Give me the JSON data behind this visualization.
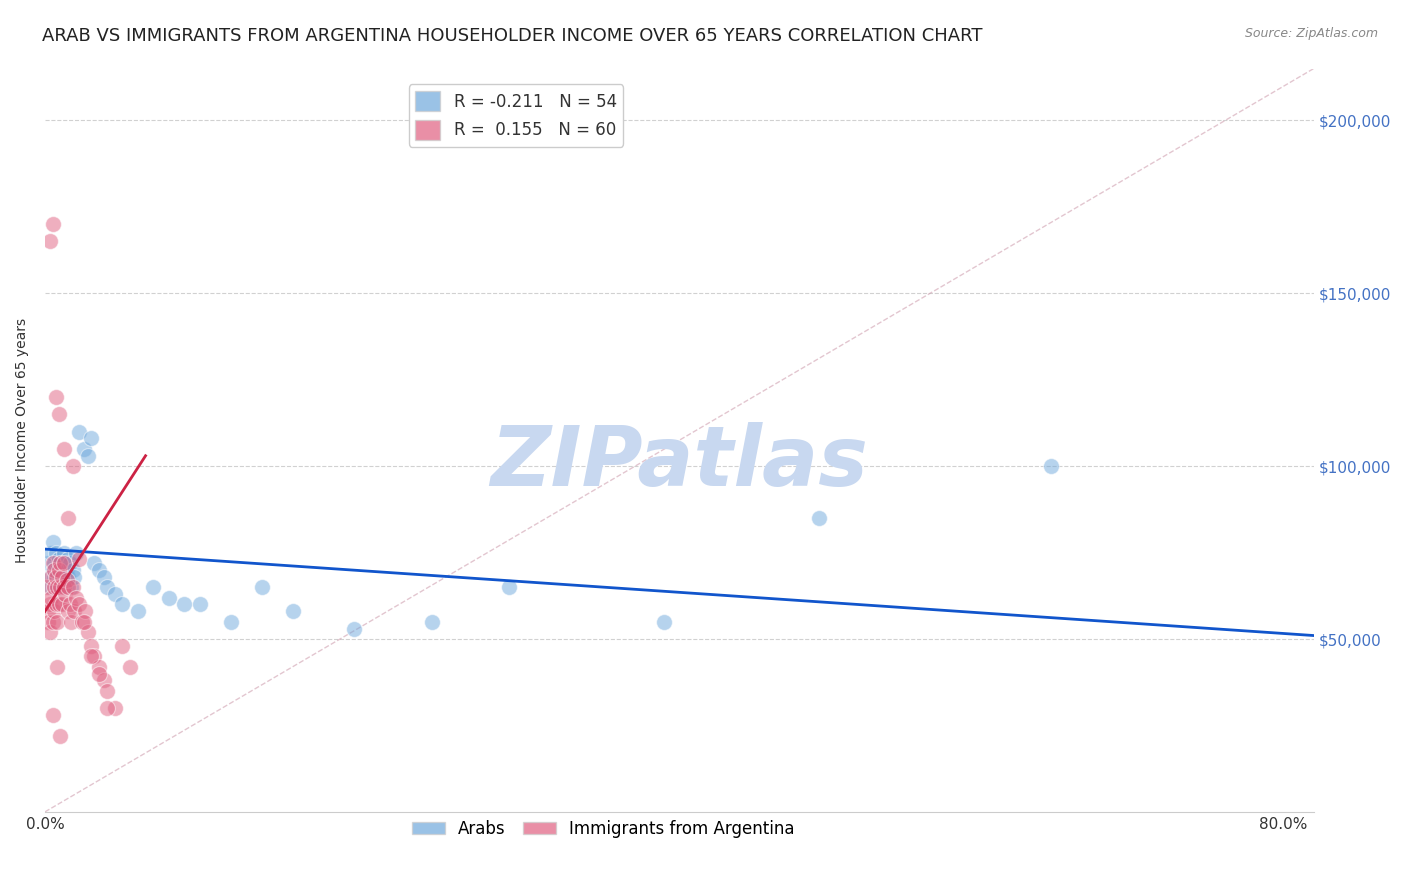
{
  "title": "ARAB VS IMMIGRANTS FROM ARGENTINA HOUSEHOLDER INCOME OVER 65 YEARS CORRELATION CHART",
  "source": "Source: ZipAtlas.com",
  "ylabel": "Householder Income Over 65 years",
  "watermark": "ZIPatlas",
  "legend_arab_R": "-0.211",
  "legend_arab_N": "54",
  "legend_arg_R": "0.155",
  "legend_arg_N": "60",
  "arab_color": "#6fa8dc",
  "arg_color": "#e06080",
  "arab_line_color": "#1155cc",
  "arg_line_color": "#cc2244",
  "ytick_labels": [
    "$50,000",
    "$100,000",
    "$150,000",
    "$200,000"
  ],
  "ytick_values": [
    50000,
    100000,
    150000,
    200000
  ],
  "ymin": 0,
  "ymax": 215000,
  "xmin": 0.0,
  "xmax": 0.82,
  "arab_scatter_x": [
    0.002,
    0.003,
    0.004,
    0.004,
    0.005,
    0.005,
    0.006,
    0.006,
    0.007,
    0.007,
    0.008,
    0.008,
    0.009,
    0.009,
    0.01,
    0.01,
    0.011,
    0.011,
    0.012,
    0.012,
    0.013,
    0.013,
    0.014,
    0.015,
    0.015,
    0.016,
    0.017,
    0.018,
    0.019,
    0.02,
    0.022,
    0.025,
    0.028,
    0.03,
    0.032,
    0.035,
    0.038,
    0.04,
    0.045,
    0.05,
    0.06,
    0.07,
    0.08,
    0.09,
    0.1,
    0.12,
    0.14,
    0.16,
    0.2,
    0.25,
    0.3,
    0.4,
    0.5,
    0.65
  ],
  "arab_scatter_y": [
    72000,
    68000,
    75000,
    65000,
    70000,
    78000,
    68000,
    72000,
    65000,
    75000,
    70000,
    68000,
    73000,
    67000,
    72000,
    65000,
    70000,
    68000,
    75000,
    72000,
    68000,
    65000,
    70000,
    73000,
    68000,
    72000,
    65000,
    70000,
    68000,
    75000,
    110000,
    105000,
    103000,
    108000,
    72000,
    70000,
    68000,
    65000,
    63000,
    60000,
    58000,
    65000,
    62000,
    60000,
    60000,
    55000,
    65000,
    58000,
    53000,
    55000,
    65000,
    55000,
    85000,
    100000
  ],
  "arg_scatter_x": [
    0.001,
    0.002,
    0.002,
    0.003,
    0.003,
    0.004,
    0.004,
    0.005,
    0.005,
    0.006,
    0.006,
    0.006,
    0.007,
    0.007,
    0.008,
    0.008,
    0.009,
    0.009,
    0.01,
    0.01,
    0.011,
    0.011,
    0.012,
    0.012,
    0.013,
    0.014,
    0.015,
    0.015,
    0.016,
    0.017,
    0.018,
    0.019,
    0.02,
    0.022,
    0.024,
    0.026,
    0.028,
    0.03,
    0.032,
    0.035,
    0.038,
    0.04,
    0.045,
    0.05,
    0.055,
    0.003,
    0.005,
    0.007,
    0.009,
    0.012,
    0.015,
    0.018,
    0.022,
    0.025,
    0.03,
    0.035,
    0.04,
    0.005,
    0.008,
    0.01
  ],
  "arg_scatter_y": [
    65000,
    58000,
    55000,
    60000,
    52000,
    62000,
    68000,
    55000,
    72000,
    58000,
    65000,
    70000,
    60000,
    68000,
    55000,
    65000,
    70000,
    60000,
    65000,
    72000,
    68000,
    60000,
    65000,
    72000,
    63000,
    67000,
    58000,
    65000,
    60000,
    55000,
    65000,
    58000,
    62000,
    60000,
    55000,
    58000,
    52000,
    48000,
    45000,
    42000,
    38000,
    35000,
    30000,
    48000,
    42000,
    165000,
    170000,
    120000,
    115000,
    105000,
    85000,
    100000,
    73000,
    55000,
    45000,
    40000,
    30000,
    28000,
    42000,
    22000
  ],
  "arab_trend_x": [
    0.0,
    0.82
  ],
  "arab_trend_y": [
    76000,
    51000
  ],
  "arg_trend_x": [
    0.0,
    0.065
  ],
  "arg_trend_y": [
    58000,
    103000
  ],
  "diag_line_x": [
    0.0,
    0.82
  ],
  "diag_line_y": [
    0,
    215000
  ],
  "background_color": "#ffffff",
  "grid_color": "#cccccc",
  "ytick_color": "#4472c4",
  "title_fontsize": 13,
  "axis_label_fontsize": 10,
  "tick_fontsize": 11,
  "legend_fontsize": 12,
  "watermark_color": "#c8d8f0",
  "watermark_fontsize": 60
}
